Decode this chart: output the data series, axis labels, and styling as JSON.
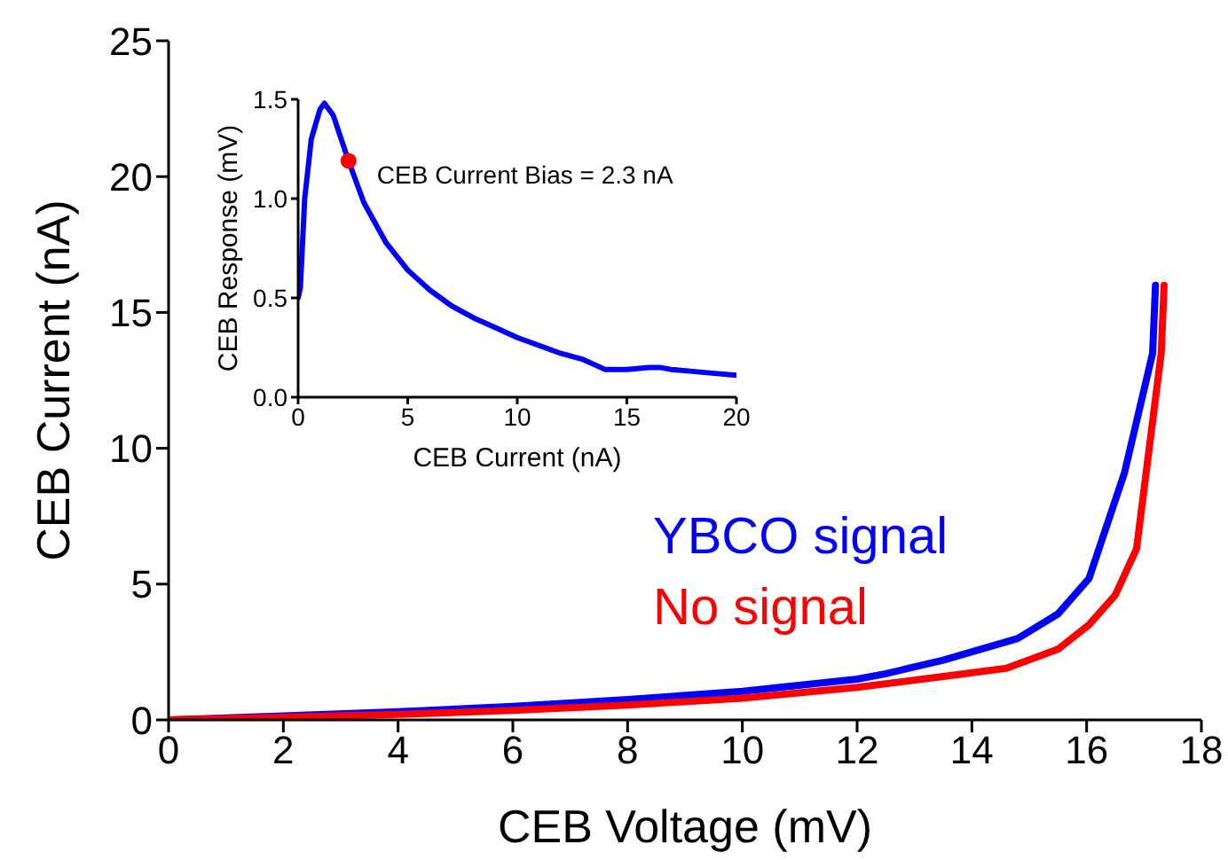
{
  "chart_data": [
    {
      "type": "line",
      "xlabel": "CEB Voltage (mV)",
      "ylabel": "CEB Current (nA)",
      "xlim": [
        0,
        18
      ],
      "xticks": [
        0,
        2,
        4,
        6,
        8,
        10,
        12,
        14,
        16,
        18
      ],
      "ylim": [
        0,
        25
      ],
      "yticks": [
        0,
        5,
        10,
        15,
        20,
        25
      ],
      "legend": "right",
      "marker": "none",
      "line_style": "solid",
      "series": [
        {
          "name": "YBCO signal",
          "color": "#0000ff",
          "x": [
            0,
            2,
            4,
            6,
            8,
            10,
            12,
            12.5,
            13.5,
            14.8,
            15.5,
            16.04,
            16.66,
            17.15,
            17.2
          ],
          "values": [
            0,
            0.15,
            0.3,
            0.5,
            0.75,
            1.05,
            1.5,
            1.7,
            2.2,
            3.0,
            3.9,
            5.2,
            9.1,
            13.5,
            16
          ]
        },
        {
          "name": "No signal",
          "color": "#ff0000",
          "x": [
            0,
            2,
            4,
            6,
            8,
            10,
            12,
            13.5,
            14.6,
            15.5,
            16.04,
            16.5,
            16.87,
            17.3,
            17.35
          ],
          "values": [
            0,
            0.1,
            0.2,
            0.35,
            0.55,
            0.8,
            1.2,
            1.6,
            1.9,
            2.6,
            3.5,
            4.6,
            6.3,
            13.5,
            16
          ]
        }
      ]
    },
    {
      "type": "line",
      "xlabel": "CEB Current (nA)",
      "ylabel": "CEB Response (mV)",
      "xlim": [
        0,
        20
      ],
      "xticks": [
        0,
        5,
        10,
        15,
        20
      ],
      "ylim": [
        0,
        1.5
      ],
      "yticks": [
        {
          "value": 0,
          "label": "0.0"
        },
        {
          "value": 0.5,
          "label": "0.5"
        },
        {
          "value": 1,
          "label": "1.0"
        },
        {
          "value": 1.5,
          "label": "1.5"
        }
      ],
      "line_style": "solid",
      "annotations": [
        {
          "text": "CEB Current Bias = 2.3 nA",
          "x": 2.3,
          "y": 1.19
        }
      ],
      "series": [
        {
          "color": "#0000ff",
          "x": [
            0,
            0.1,
            0.3,
            0.6,
            1,
            1.2,
            1.6,
            2.3,
            3,
            4,
            5,
            6,
            7,
            8,
            9,
            10,
            11,
            12,
            13,
            14,
            15,
            16,
            16.5,
            17,
            18,
            19,
            20
          ],
          "values": [
            0.5,
            0.55,
            1.0,
            1.3,
            1.45,
            1.48,
            1.42,
            1.19,
            0.98,
            0.78,
            0.64,
            0.54,
            0.46,
            0.4,
            0.35,
            0.3,
            0.26,
            0.22,
            0.19,
            0.14,
            0.14,
            0.15,
            0.15,
            0.14,
            0.13,
            0.12,
            0.11
          ],
          "marker": "none"
        },
        {
          "type": "scatter",
          "color": "#ff0000",
          "x": [
            2.3
          ],
          "values": [
            1.19
          ],
          "marker": "circle"
        }
      ]
    }
  ]
}
